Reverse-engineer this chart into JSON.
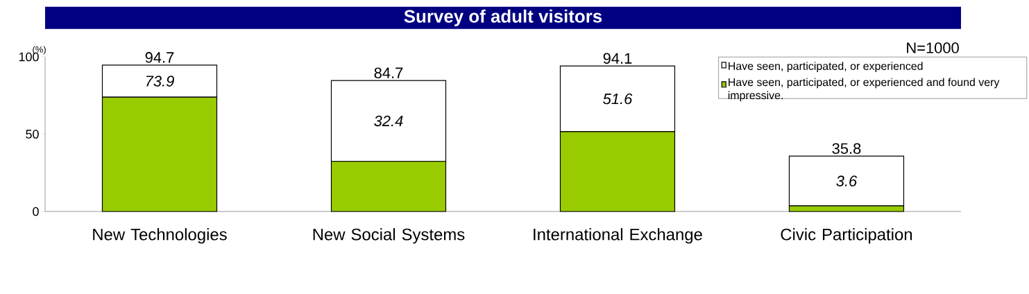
{
  "chart_data": {
    "type": "bar",
    "title": "Survey of adult visitors",
    "ylabel": "(%)",
    "categories": [
      "New Technologies",
      "New Social Systems",
      "International Exchange",
      "Civic Participation"
    ],
    "stacked": true,
    "series": [
      {
        "name": "Have seen, participated, or experienced and found very impressive.",
        "color": "#99cc00",
        "values": [
          73.9,
          32.4,
          51.6,
          3.6
        ],
        "value_labels": [
          "73.9",
          "32.4",
          "51.6",
          "3.6"
        ]
      },
      {
        "name": "Have seen, participated, or experienced",
        "color": "#ffffff",
        "values": [
          20.8,
          52.3,
          42.5,
          32.2
        ]
      }
    ],
    "totals": [
      "94.7",
      "84.7",
      "94.1",
      "35.8"
    ],
    "ylim": [
      0,
      100
    ],
    "yticks": [
      0,
      50,
      100
    ],
    "legend": "top right",
    "annotations": [
      "N=1000"
    ]
  }
}
